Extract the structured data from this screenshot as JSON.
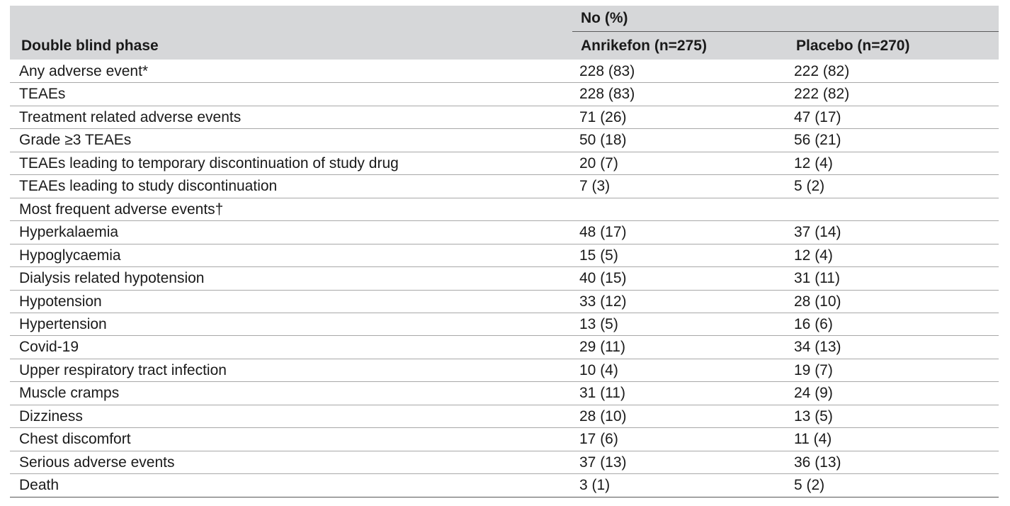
{
  "table": {
    "group_label": "No (%)",
    "columns": [
      "Double blind phase",
      "Anrikefon (n=275)",
      "Placebo (n=270)"
    ],
    "rows": [
      [
        "Any adverse event*",
        "228 (83)",
        "222 (82)"
      ],
      [
        "TEAEs",
        "228 (83)",
        "222 (82)"
      ],
      [
        "Treatment related adverse events",
        "71 (26)",
        "47 (17)"
      ],
      [
        "Grade ≥3 TEAEs",
        "50 (18)",
        "56 (21)"
      ],
      [
        "TEAEs leading to temporary discontinuation of study drug",
        "20 (7)",
        "12 (4)"
      ],
      [
        "TEAEs leading to study discontinuation",
        "7 (3)",
        "5 (2)"
      ],
      [
        "Most frequent adverse events†"
      ],
      [
        "Hyperkalaemia",
        "48 (17)",
        "37 (14)"
      ],
      [
        "Hypoglycaemia",
        "15 (5)",
        "12 (4)"
      ],
      [
        "Dialysis related hypotension",
        "40 (15)",
        "31 (11)"
      ],
      [
        "Hypotension",
        "33 (12)",
        "28 (10)"
      ],
      [
        "Hypertension",
        "13 (5)",
        "16 (6)"
      ],
      [
        "Covid-19",
        "29 (11)",
        "34 (13)"
      ],
      [
        "Upper respiratory tract infection",
        "10 (4)",
        "19 (7)"
      ],
      [
        "Muscle cramps",
        "31 (11)",
        "24 (9)"
      ],
      [
        "Dizziness",
        "28 (10)",
        "13 (5)"
      ],
      [
        "Chest discomfort",
        "17 (6)",
        "11 (4)"
      ],
      [
        "Serious adverse events",
        "37 (13)",
        "36 (13)"
      ],
      [
        "Death",
        "3 (1)",
        "5 (2)"
      ]
    ]
  }
}
